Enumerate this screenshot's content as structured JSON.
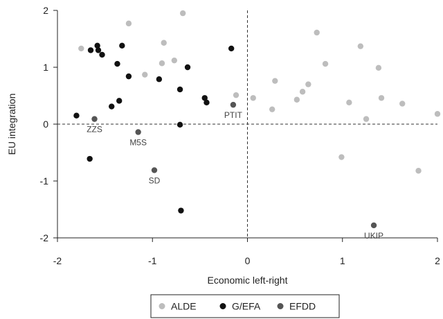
{
  "chart_data": {
    "type": "scatter",
    "xlabel": "Economic left-right",
    "ylabel": "EU integration",
    "xlim": [
      -2,
      2
    ],
    "ylim": [
      -2,
      2
    ],
    "xticks": [
      "-2",
      "-1",
      "0",
      "1",
      "2"
    ],
    "yticks": [
      "-2",
      "-1",
      "0",
      "1",
      "2"
    ],
    "reference_lines": {
      "x": 0,
      "y": 0,
      "style": "dashed"
    },
    "legend_position": "bottom",
    "series": [
      {
        "name": "ALDE",
        "color": "#bdbdbd",
        "points": [
          {
            "x": -1.75,
            "y": 1.33
          },
          {
            "x": -1.25,
            "y": 1.77
          },
          {
            "x": -1.08,
            "y": 0.87
          },
          {
            "x": -0.9,
            "y": 1.07
          },
          {
            "x": -0.88,
            "y": 1.43
          },
          {
            "x": -0.77,
            "y": 1.12
          },
          {
            "x": -0.68,
            "y": 1.95
          },
          {
            "x": -0.12,
            "y": 0.51
          },
          {
            "x": 0.06,
            "y": 0.46
          },
          {
            "x": 0.26,
            "y": 0.26
          },
          {
            "x": 0.29,
            "y": 0.76
          },
          {
            "x": 0.52,
            "y": 0.43
          },
          {
            "x": 0.58,
            "y": 0.57
          },
          {
            "x": 0.64,
            "y": 0.7
          },
          {
            "x": 0.73,
            "y": 1.61
          },
          {
            "x": 0.82,
            "y": 1.06
          },
          {
            "x": 0.99,
            "y": -0.58
          },
          {
            "x": 1.07,
            "y": 0.38
          },
          {
            "x": 1.19,
            "y": 1.37
          },
          {
            "x": 1.25,
            "y": 0.09
          },
          {
            "x": 1.38,
            "y": 0.99
          },
          {
            "x": 1.41,
            "y": 0.46
          },
          {
            "x": 1.63,
            "y": 0.36
          },
          {
            "x": 1.8,
            "y": -0.82
          },
          {
            "x": 2.0,
            "y": 0.18
          }
        ]
      },
      {
        "name": "G/EFA",
        "color": "#111111",
        "points": [
          {
            "x": -1.8,
            "y": 0.15
          },
          {
            "x": -1.66,
            "y": -0.61
          },
          {
            "x": -1.65,
            "y": 1.3
          },
          {
            "x": -1.58,
            "y": 1.38
          },
          {
            "x": -1.57,
            "y": 1.3
          },
          {
            "x": -1.53,
            "y": 1.22
          },
          {
            "x": -1.43,
            "y": 0.31
          },
          {
            "x": -1.37,
            "y": 1.06
          },
          {
            "x": -1.35,
            "y": 0.41
          },
          {
            "x": -1.32,
            "y": 1.38
          },
          {
            "x": -1.25,
            "y": 0.84
          },
          {
            "x": -0.93,
            "y": 0.79
          },
          {
            "x": -0.71,
            "y": 0.61
          },
          {
            "x": -0.71,
            "y": -0.01
          },
          {
            "x": -0.7,
            "y": -1.52
          },
          {
            "x": -0.63,
            "y": 1.0
          },
          {
            "x": -0.45,
            "y": 0.46
          },
          {
            "x": -0.43,
            "y": 0.38
          },
          {
            "x": -0.17,
            "y": 1.33
          }
        ]
      },
      {
        "name": "EFDD",
        "color": "#555555",
        "points": [
          {
            "x": -1.61,
            "y": 0.09,
            "label": "ZZS"
          },
          {
            "x": -1.15,
            "y": -0.14,
            "label": "M5S"
          },
          {
            "x": -0.98,
            "y": -0.81,
            "label": "SD"
          },
          {
            "x": -0.15,
            "y": 0.34,
            "label": "PTIT"
          },
          {
            "x": 1.33,
            "y": -1.78,
            "label": "UKIP"
          }
        ]
      }
    ]
  }
}
